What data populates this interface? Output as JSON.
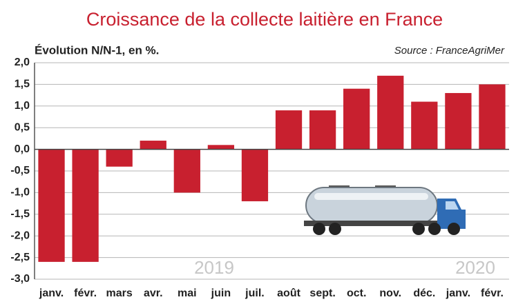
{
  "chart_data": {
    "type": "bar",
    "title": "Croissance de la collecte laitière en France",
    "subtitle": "Évolution N/N-1, en %.",
    "source": "Source : FranceAgriMer",
    "categories": [
      "janv.",
      "févr.",
      "mars",
      "avr.",
      "mai",
      "juin",
      "juil.",
      "août",
      "sept.",
      "oct.",
      "nov.",
      "déc.",
      "janv.",
      "févr."
    ],
    "values": [
      -2.6,
      -2.6,
      -0.4,
      0.2,
      -1.0,
      0.1,
      -1.2,
      0.9,
      0.9,
      1.4,
      1.7,
      1.1,
      1.3,
      1.5
    ],
    "color": "#c8202f",
    "ylim": [
      -3.0,
      2.0
    ],
    "yticks": [
      {
        "value": 2.0,
        "label": "2,0"
      },
      {
        "value": 1.5,
        "label": "1,5"
      },
      {
        "value": 1.0,
        "label": "1,0"
      },
      {
        "value": 0.5,
        "label": "0,5"
      },
      {
        "value": 0.0,
        "label": "0,0"
      },
      {
        "value": -0.5,
        "label": "-0,5"
      },
      {
        "value": -1.0,
        "label": "-1,0"
      },
      {
        "value": -1.5,
        "label": "-1,5"
      },
      {
        "value": -2.0,
        "label": "-2,0"
      },
      {
        "value": -2.5,
        "label": "-2,5"
      },
      {
        "value": -3.0,
        "label": "-3,0"
      }
    ],
    "grid": true,
    "annotations": [
      "2019",
      "2020"
    ]
  }
}
